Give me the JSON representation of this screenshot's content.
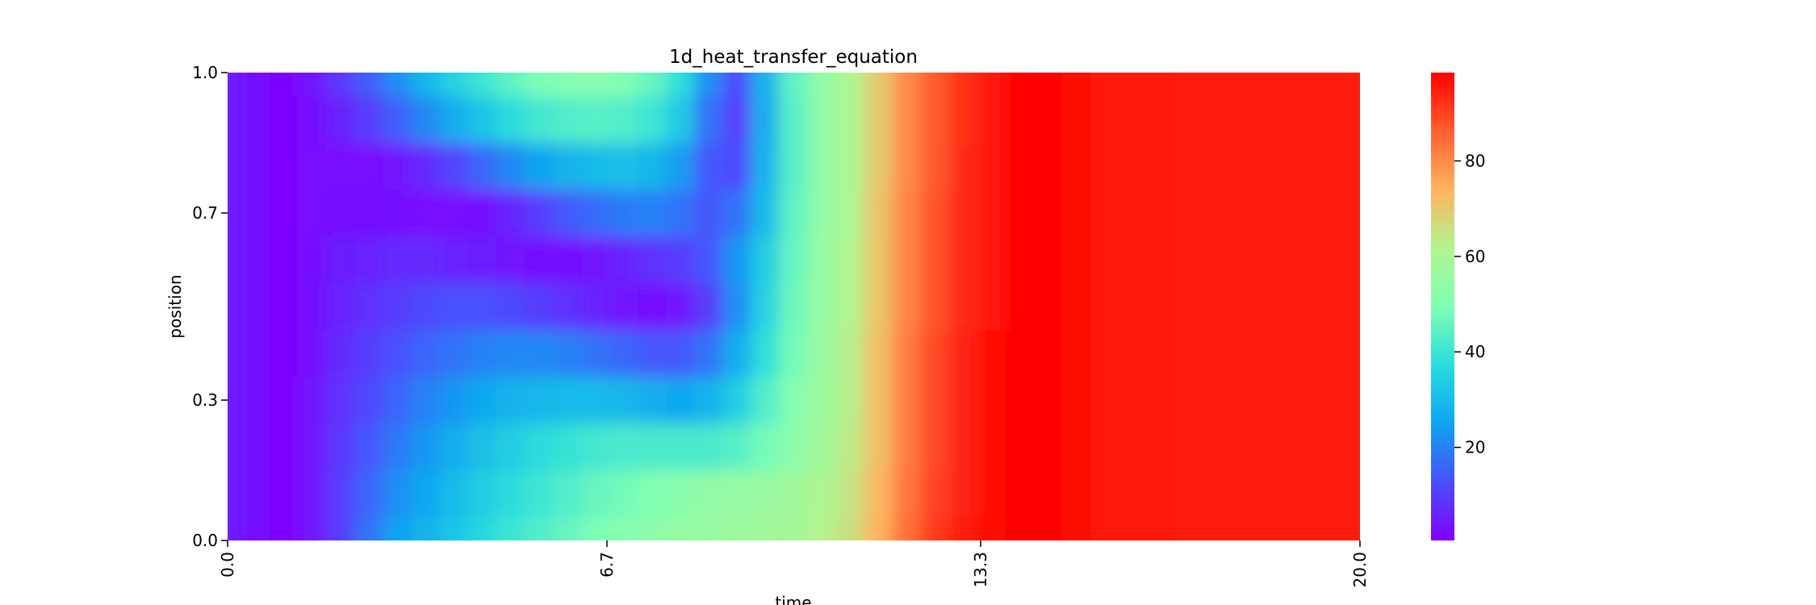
{
  "chart_data": {
    "type": "heatmap",
    "title": "1d_heat_transfer_equation",
    "xlabel": "time",
    "ylabel": "position",
    "xlim": [
      0.0,
      20.0
    ],
    "ylim": [
      0.0,
      1.0
    ],
    "x_ticks": [
      "0.0",
      "6.7",
      "13.3",
      "20.0"
    ],
    "x_tick_values": [
      0.0,
      6.7,
      13.3,
      20.0
    ],
    "y_ticks": [
      "0.0",
      "0.3",
      "0.7",
      "1.0"
    ],
    "y_tick_values": [
      0.0,
      0.3,
      0.7,
      1.0
    ],
    "colormap": "rainbow",
    "colorbar": {
      "range": [
        0.5,
        98.5
      ],
      "ticks": [
        "20",
        "40",
        "60",
        "80"
      ],
      "tick_values": [
        20,
        40,
        60,
        80
      ]
    },
    "grid": false,
    "x": [
      0.0,
      0.5,
      1.0,
      1.5,
      2.0,
      2.5,
      3.0,
      3.5,
      4.0,
      4.5,
      5.0,
      5.5,
      6.0,
      6.5,
      7.0,
      7.5,
      8.0,
      8.5,
      9.0,
      9.5,
      10.0,
      10.5,
      11.0,
      11.5,
      12.0,
      12.5,
      13.0,
      13.5,
      14.0,
      14.5,
      15.0,
      15.5,
      16.0,
      16.5,
      17.0,
      17.5,
      18.0,
      18.5,
      19.0,
      19.5,
      20.0
    ],
    "y": [
      0.0,
      0.1,
      0.2,
      0.3,
      0.4,
      0.5,
      0.6,
      0.7,
      0.8,
      0.9,
      1.0
    ],
    "z": [
      [
        5,
        3,
        1,
        4,
        10,
        18,
        25,
        28,
        32,
        36,
        40,
        43,
        46,
        49,
        51,
        53,
        55,
        56,
        57,
        58,
        59,
        62,
        66,
        74,
        84,
        91,
        95,
        97,
        98,
        98,
        97,
        96,
        96,
        96,
        95,
        95,
        95,
        95,
        95,
        95,
        95
      ],
      [
        5,
        3,
        1,
        4,
        10,
        16,
        22,
        26,
        30,
        34,
        37,
        40,
        43,
        46,
        48,
        50,
        52,
        54,
        55,
        56,
        58,
        61,
        65,
        73,
        83,
        90,
        94,
        97,
        98,
        98,
        97,
        96,
        96,
        96,
        95,
        95,
        95,
        95,
        95,
        95,
        95
      ],
      [
        5,
        3,
        1,
        4,
        9,
        14,
        19,
        23,
        27,
        31,
        34,
        37,
        39,
        41,
        42,
        42,
        42,
        42,
        44,
        48,
        53,
        58,
        64,
        72,
        82,
        89,
        94,
        97,
        98,
        98,
        97,
        96,
        96,
        96,
        95,
        95,
        95,
        95,
        95,
        95,
        95
      ],
      [
        5,
        3,
        1,
        4,
        8,
        12,
        16,
        20,
        23,
        26,
        28,
        29,
        30,
        30,
        29,
        27,
        26,
        28,
        34,
        43,
        51,
        57,
        63,
        72,
        82,
        89,
        94,
        97,
        98,
        98,
        97,
        96,
        96,
        96,
        95,
        95,
        95,
        95,
        95,
        95,
        95
      ],
      [
        5,
        3,
        1,
        3,
        7,
        10,
        13,
        16,
        18,
        20,
        21,
        21,
        20,
        18,
        16,
        14,
        14,
        18,
        27,
        38,
        48,
        56,
        63,
        72,
        82,
        89,
        94,
        97,
        98,
        98,
        97,
        96,
        96,
        96,
        95,
        95,
        95,
        95,
        95,
        95,
        95
      ],
      [
        5,
        3,
        1,
        3,
        6,
        8,
        10,
        12,
        13,
        13,
        12,
        10,
        8,
        6,
        4,
        3,
        4,
        10,
        22,
        35,
        47,
        55,
        62,
        71,
        81,
        88,
        93,
        96,
        98,
        98,
        97,
        96,
        96,
        96,
        95,
        95,
        95,
        95,
        95,
        95,
        95
      ],
      [
        5,
        3,
        1,
        3,
        5,
        6,
        7,
        7,
        6,
        5,
        4,
        3,
        3,
        4,
        6,
        8,
        10,
        14,
        23,
        34,
        46,
        55,
        62,
        71,
        81,
        88,
        93,
        96,
        98,
        98,
        97,
        96,
        96,
        96,
        95,
        95,
        95,
        95,
        95,
        95,
        95
      ],
      [
        5,
        3,
        1,
        2,
        3,
        3,
        3,
        2,
        2,
        3,
        6,
        10,
        14,
        17,
        19,
        20,
        18,
        14,
        18,
        30,
        45,
        54,
        61,
        71,
        81,
        88,
        93,
        96,
        98,
        98,
        97,
        96,
        96,
        96,
        95,
        95,
        95,
        95,
        95,
        95,
        95
      ],
      [
        5,
        3,
        1,
        2,
        2,
        2,
        4,
        7,
        11,
        16,
        21,
        25,
        28,
        30,
        31,
        29,
        24,
        14,
        12,
        28,
        44,
        54,
        61,
        70,
        80,
        87,
        93,
        96,
        98,
        98,
        97,
        96,
        96,
        96,
        95,
        95,
        95,
        95,
        95,
        95,
        95
      ],
      [
        5,
        3,
        1,
        3,
        6,
        10,
        15,
        21,
        27,
        32,
        37,
        41,
        43,
        44,
        43,
        40,
        33,
        18,
        10,
        27,
        44,
        54,
        61,
        70,
        80,
        87,
        92,
        96,
        98,
        98,
        97,
        96,
        96,
        96,
        95,
        95,
        95,
        95,
        95,
        95,
        95
      ],
      [
        5,
        3,
        1,
        4,
        9,
        15,
        22,
        29,
        35,
        40,
        45,
        49,
        51,
        52,
        50,
        46,
        38,
        22,
        12,
        28,
        45,
        54,
        61,
        70,
        80,
        87,
        92,
        96,
        98,
        98,
        97,
        96,
        96,
        96,
        95,
        95,
        95,
        95,
        95,
        95,
        95
      ]
    ]
  }
}
